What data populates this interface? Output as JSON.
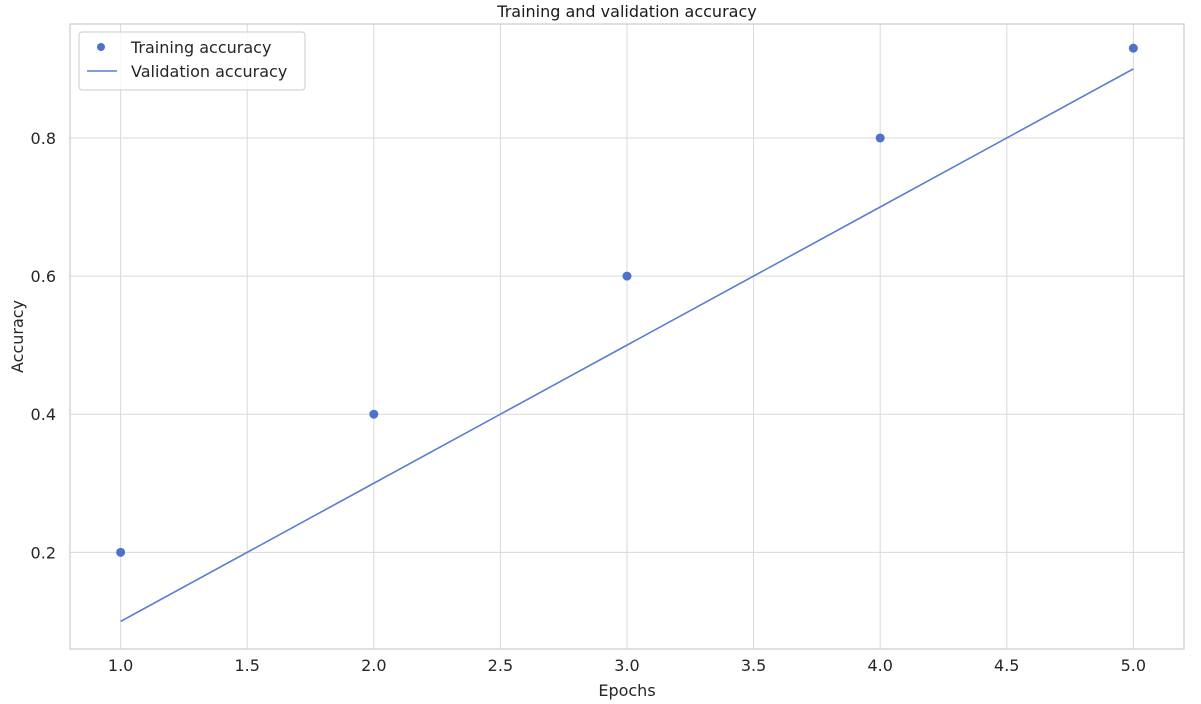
{
  "chart_data": {
    "type": "scatter",
    "title": "Training and validation accuracy",
    "xlabel": "Epochs",
    "ylabel": "Accuracy",
    "xlim": [
      0.8,
      5.2
    ],
    "ylim": [
      0.06,
      0.965
    ],
    "xticks": [
      1.0,
      1.5,
      2.0,
      2.5,
      3.0,
      3.5,
      4.0,
      4.5,
      5.0
    ],
    "xtick_labels": [
      "1.0",
      "1.5",
      "2.0",
      "2.5",
      "3.0",
      "3.5",
      "4.0",
      "4.5",
      "5.0"
    ],
    "yticks": [
      0.2,
      0.4,
      0.6,
      0.8
    ],
    "ytick_labels": [
      "0.2",
      "0.4",
      "0.6",
      "0.8"
    ],
    "grid": true,
    "legend_position": "top-left",
    "series": [
      {
        "name": "Training accuracy",
        "style": "markers",
        "color": "#4c72c9",
        "x": [
          1,
          2,
          3,
          4,
          5
        ],
        "y": [
          0.2,
          0.4,
          0.6,
          0.8,
          0.93
        ]
      },
      {
        "name": "Validation accuracy",
        "style": "line",
        "color": "#5a7fd0",
        "x": [
          1,
          2,
          3,
          4,
          5
        ],
        "y": [
          0.1,
          0.3,
          0.5,
          0.7,
          0.9
        ]
      }
    ]
  },
  "colors": {
    "grid": "#d9d9d9",
    "axes_edge": "#cccccc",
    "text": "#262626"
  }
}
